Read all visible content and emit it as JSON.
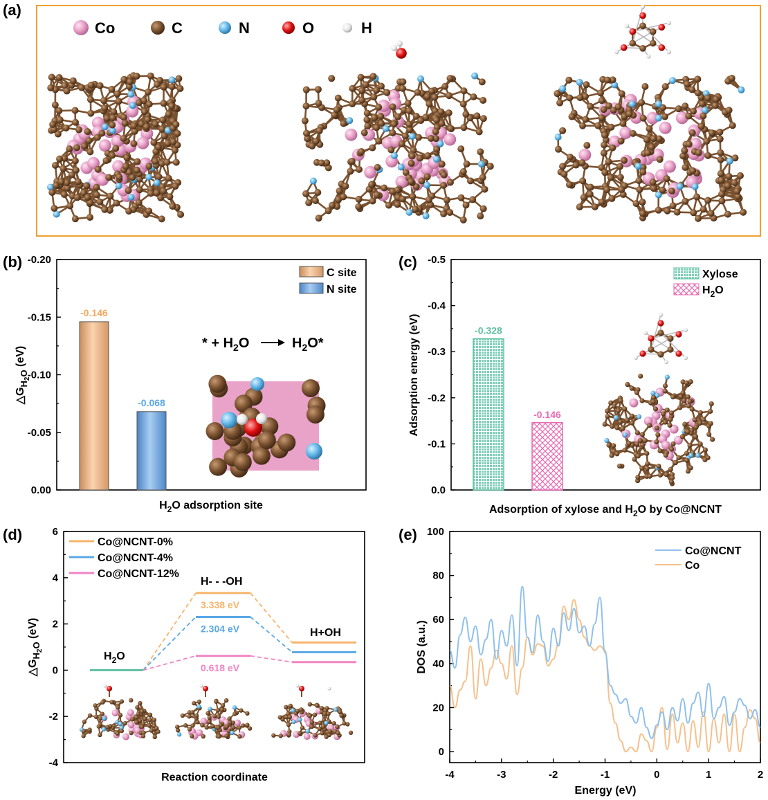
{
  "panel_a": {
    "letter": "(a)",
    "legend": [
      {
        "label": "Co",
        "color": "#e9a3c9"
      },
      {
        "label": "C",
        "color": "#7a5230"
      },
      {
        "label": "N",
        "color": "#5fb6e6"
      },
      {
        "label": "O",
        "color": "#e01010"
      },
      {
        "label": "H",
        "color": "#e6e6e6"
      }
    ],
    "frame_color": "#f0a030"
  },
  "colors": {
    "c_site": "#f1b98c",
    "n_site": "#78aee6",
    "xylose": "#7fcfb8",
    "h2o": "#e86ab2",
    "nc0": "#f7b46a",
    "nc4": "#5aa8e6",
    "nc12": "#f084c4",
    "h2o_level": "#5cbfa0",
    "dos_conct": "#8fc0ec",
    "dos_co": "#f6c08c",
    "c_label": "#f5a860",
    "n_label": "#5aa8e6",
    "xylose_label": "#5cbfa0",
    "h2o_label": "#e86ab2"
  },
  "chart_data": [
    {
      "panel": "(b)",
      "type": "bar",
      "categories": [
        "C site",
        "N site"
      ],
      "values": [
        -0.146,
        -0.068
      ],
      "value_labels": [
        "-0.146",
        "-0.068"
      ],
      "legend": [
        "C site",
        "N site"
      ],
      "ylabel_main": "△G",
      "ylabel_sub": "H",
      "ylabel_subsub": "2",
      "ylabel_sub2": "O",
      "ylabel_unit": " (eV)",
      "xlabel_pre": "H",
      "xlabel_sub": "2",
      "xlabel_post": "O adsorption site",
      "ylim": [
        0,
        -0.2
      ],
      "yticks": [
        "-0.20",
        "-0.15",
        "-0.10",
        "-0.05",
        "0.00"
      ],
      "equation_parts": [
        "* + H",
        "2",
        "O",
        "H",
        "2",
        "O*"
      ]
    },
    {
      "panel": "(c)",
      "type": "bar",
      "categories": [
        "Xylose",
        "H2O"
      ],
      "values": [
        -0.328,
        -0.146
      ],
      "value_labels": [
        "-0.328",
        "-0.146"
      ],
      "legend": [
        "Xylose",
        "H",
        "2",
        "O"
      ],
      "ylabel": "Adsorption energy (eV)",
      "xlabel": "Adsorption of  xylose and H",
      "xlabel_sub": "2",
      "xlabel_post": "O by Co@NCNT",
      "ylim": [
        0,
        -0.5
      ],
      "yticks": [
        "-0.5",
        "-0.4",
        "-0.3",
        "-0.2",
        "-0.1",
        "0.0"
      ]
    },
    {
      "panel": "(d)",
      "type": "line",
      "series_names": [
        "Co@NCNT-0%",
        "Co@NCNT-4%",
        "Co@NCNT-12%"
      ],
      "states": [
        "H2O",
        "H- - -OH",
        "H+OH"
      ],
      "state_labels": [
        "H",
        "2",
        "O",
        "H- - -OH",
        "H+OH"
      ],
      "levels": [
        {
          "name": "Co@NCNT-0%",
          "values": [
            0,
            3.338,
            1.2
          ]
        },
        {
          "name": "Co@NCNT-4%",
          "values": [
            0,
            2.304,
            0.78
          ]
        },
        {
          "name": "Co@NCNT-12%",
          "values": [
            0,
            0.618,
            0.35
          ]
        }
      ],
      "barrier_labels": [
        "3.338 eV",
        "2.304 eV",
        "0.618 eV"
      ],
      "ylabel_main": "△G",
      "ylabel_sub": "H",
      "ylabel_subsub": "2",
      "ylabel_sub2": "O",
      "ylabel_unit": " (eV)",
      "xlabel": "Reaction coordinate",
      "ylim": [
        -4,
        6
      ],
      "yticks": [
        "6",
        "4",
        "2",
        "0",
        "-2",
        "-4"
      ]
    },
    {
      "panel": "(e)",
      "type": "line",
      "series": [
        {
          "name": "Co@NCNT"
        },
        {
          "name": "Co"
        }
      ],
      "xlabel": "Energy (eV)",
      "ylabel": "DOS (a.u.)",
      "xlim": [
        -4,
        2
      ],
      "ylim": [
        -5,
        100
      ],
      "xticks": [
        "-4",
        "-3",
        "-2",
        "-1",
        "0",
        "1",
        "2"
      ],
      "yticks": [
        "100",
        "80",
        "60",
        "40",
        "20",
        "0"
      ],
      "x": [
        -4.0,
        -3.9,
        -3.8,
        -3.7,
        -3.6,
        -3.5,
        -3.4,
        -3.3,
        -3.2,
        -3.1,
        -3.0,
        -2.9,
        -2.8,
        -2.7,
        -2.6,
        -2.5,
        -2.4,
        -2.3,
        -2.2,
        -2.1,
        -2.0,
        -1.9,
        -1.8,
        -1.7,
        -1.6,
        -1.5,
        -1.4,
        -1.3,
        -1.2,
        -1.1,
        -1.0,
        -0.9,
        -0.8,
        -0.7,
        -0.6,
        -0.5,
        -0.4,
        -0.3,
        -0.2,
        -0.1,
        0.0,
        0.1,
        0.2,
        0.3,
        0.4,
        0.5,
        0.6,
        0.7,
        0.8,
        0.9,
        1.0,
        1.1,
        1.2,
        1.3,
        1.4,
        1.5,
        1.6,
        1.7,
        1.8,
        1.9,
        2.0
      ],
      "values_conct": [
        46,
        38,
        53,
        61,
        50,
        57,
        44,
        51,
        60,
        42,
        55,
        48,
        62,
        39,
        75,
        52,
        45,
        62,
        50,
        41,
        56,
        48,
        63,
        55,
        65,
        54,
        57,
        48,
        58,
        70,
        45,
        30,
        26,
        22,
        24,
        16,
        13,
        20,
        11,
        6,
        12,
        18,
        10,
        20,
        14,
        24,
        13,
        22,
        27,
        16,
        31,
        15,
        20,
        25,
        12,
        18,
        24,
        21,
        15,
        19,
        11
      ],
      "values_co": [
        30,
        20,
        28,
        32,
        48,
        24,
        42,
        30,
        38,
        46,
        40,
        33,
        48,
        26,
        38,
        52,
        44,
        49,
        48,
        39,
        42,
        49,
        66,
        60,
        69,
        60,
        52,
        48,
        46,
        48,
        46,
        22,
        13,
        5,
        0,
        2,
        0,
        8,
        5,
        0,
        11,
        20,
        1,
        17,
        4,
        13,
        0,
        14,
        2,
        18,
        0,
        15,
        4,
        17,
        0,
        17,
        0,
        11,
        19,
        15,
        4
      ]
    }
  ]
}
